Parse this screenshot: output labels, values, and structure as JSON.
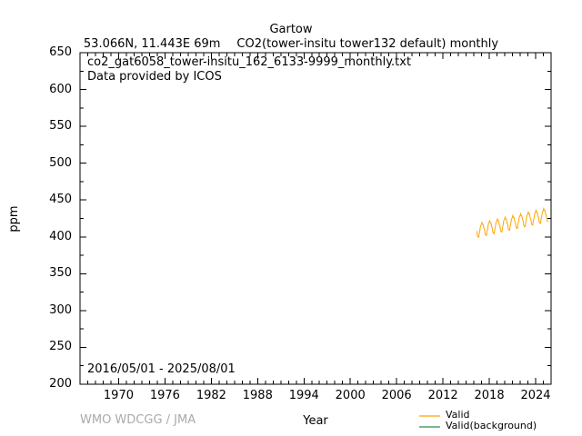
{
  "title": {
    "station": "Gartow",
    "location": "53.066N, 11.443E 69m",
    "dataset": "CO2(tower-insitu tower132 default) monthly"
  },
  "plot": {
    "annotation_file": "co2_gat6058_tower-insitu_162_6133-9999_monthly.txt",
    "annotation_provider": "Data provided by ICOS",
    "date_range": "2016/05/01 - 2025/08/01",
    "ylabel": "ppm",
    "xlabel": "Year"
  },
  "footer": {
    "credit": "WMO WDCGG / JMA"
  },
  "legend": {
    "items": [
      {
        "label": "Valid",
        "color": "#ffa500"
      },
      {
        "label": "Valid(background)",
        "color": "#2e8b57"
      }
    ]
  },
  "chart_data": {
    "type": "line",
    "title": "Gartow CO2(tower-insitu tower132 default) monthly",
    "xlabel": "Year",
    "ylabel": "ppm",
    "xlim": [
      1965,
      2026
    ],
    "ylim": [
      200,
      650
    ],
    "x_major_ticks": [
      1970,
      1976,
      1982,
      1988,
      1994,
      2000,
      2006,
      2012,
      2018,
      2024
    ],
    "x_minor_step": 1,
    "y_major_ticks": [
      200,
      250,
      300,
      350,
      400,
      450,
      500,
      550,
      600,
      650
    ],
    "y_minor_step": 25,
    "grid": false,
    "legend_position": "bottom-right",
    "axis_color": "#000000",
    "series": [
      {
        "name": "Valid",
        "color": "#ffa500",
        "start_year": 2016,
        "start_month": 5,
        "cadence": "monthly",
        "values": [
          408.0,
          401.6,
          399.9,
          399.5,
          405.3,
          409.4,
          415.2,
          416.3,
          419.6,
          417.2,
          417.0,
          411.6,
          410.4,
          404.0,
          402.3,
          401.9,
          407.7,
          411.7,
          417.5,
          418.6,
          421.9,
          419.5,
          419.3,
          413.9,
          412.7,
          406.3,
          404.6,
          404.2,
          410.0,
          414.1,
          419.9,
          421.0,
          424.3,
          421.9,
          421.7,
          416.3,
          415.1,
          408.7,
          407.0,
          406.6,
          412.4,
          416.5,
          422.3,
          423.4,
          426.7,
          424.3,
          424.0,
          418.6,
          417.4,
          411.0,
          409.3,
          408.9,
          414.7,
          418.7,
          424.5,
          425.6,
          429.0,
          426.6,
          426.4,
          421.0,
          419.8,
          413.4,
          411.7,
          411.3,
          417.1,
          421.1,
          426.9,
          428.0,
          431.4,
          428.9,
          428.7,
          423.3,
          422.1,
          415.7,
          414.0,
          413.6,
          419.4,
          423.4,
          429.2,
          430.3,
          433.7,
          431.3,
          431.1,
          425.7,
          424.5,
          418.1,
          416.4,
          416.0,
          421.8,
          425.8,
          431.6,
          432.7,
          436.1,
          433.6,
          433.4,
          428.0,
          426.8,
          420.4,
          418.7,
          418.3,
          424.1,
          428.1,
          433.9,
          435.0,
          438.4,
          436.0,
          435.8,
          430.4,
          429.2,
          422.8,
          421.1,
          420.7
        ]
      },
      {
        "name": "Valid(background)",
        "color": "#2e8b57",
        "values": []
      }
    ]
  }
}
